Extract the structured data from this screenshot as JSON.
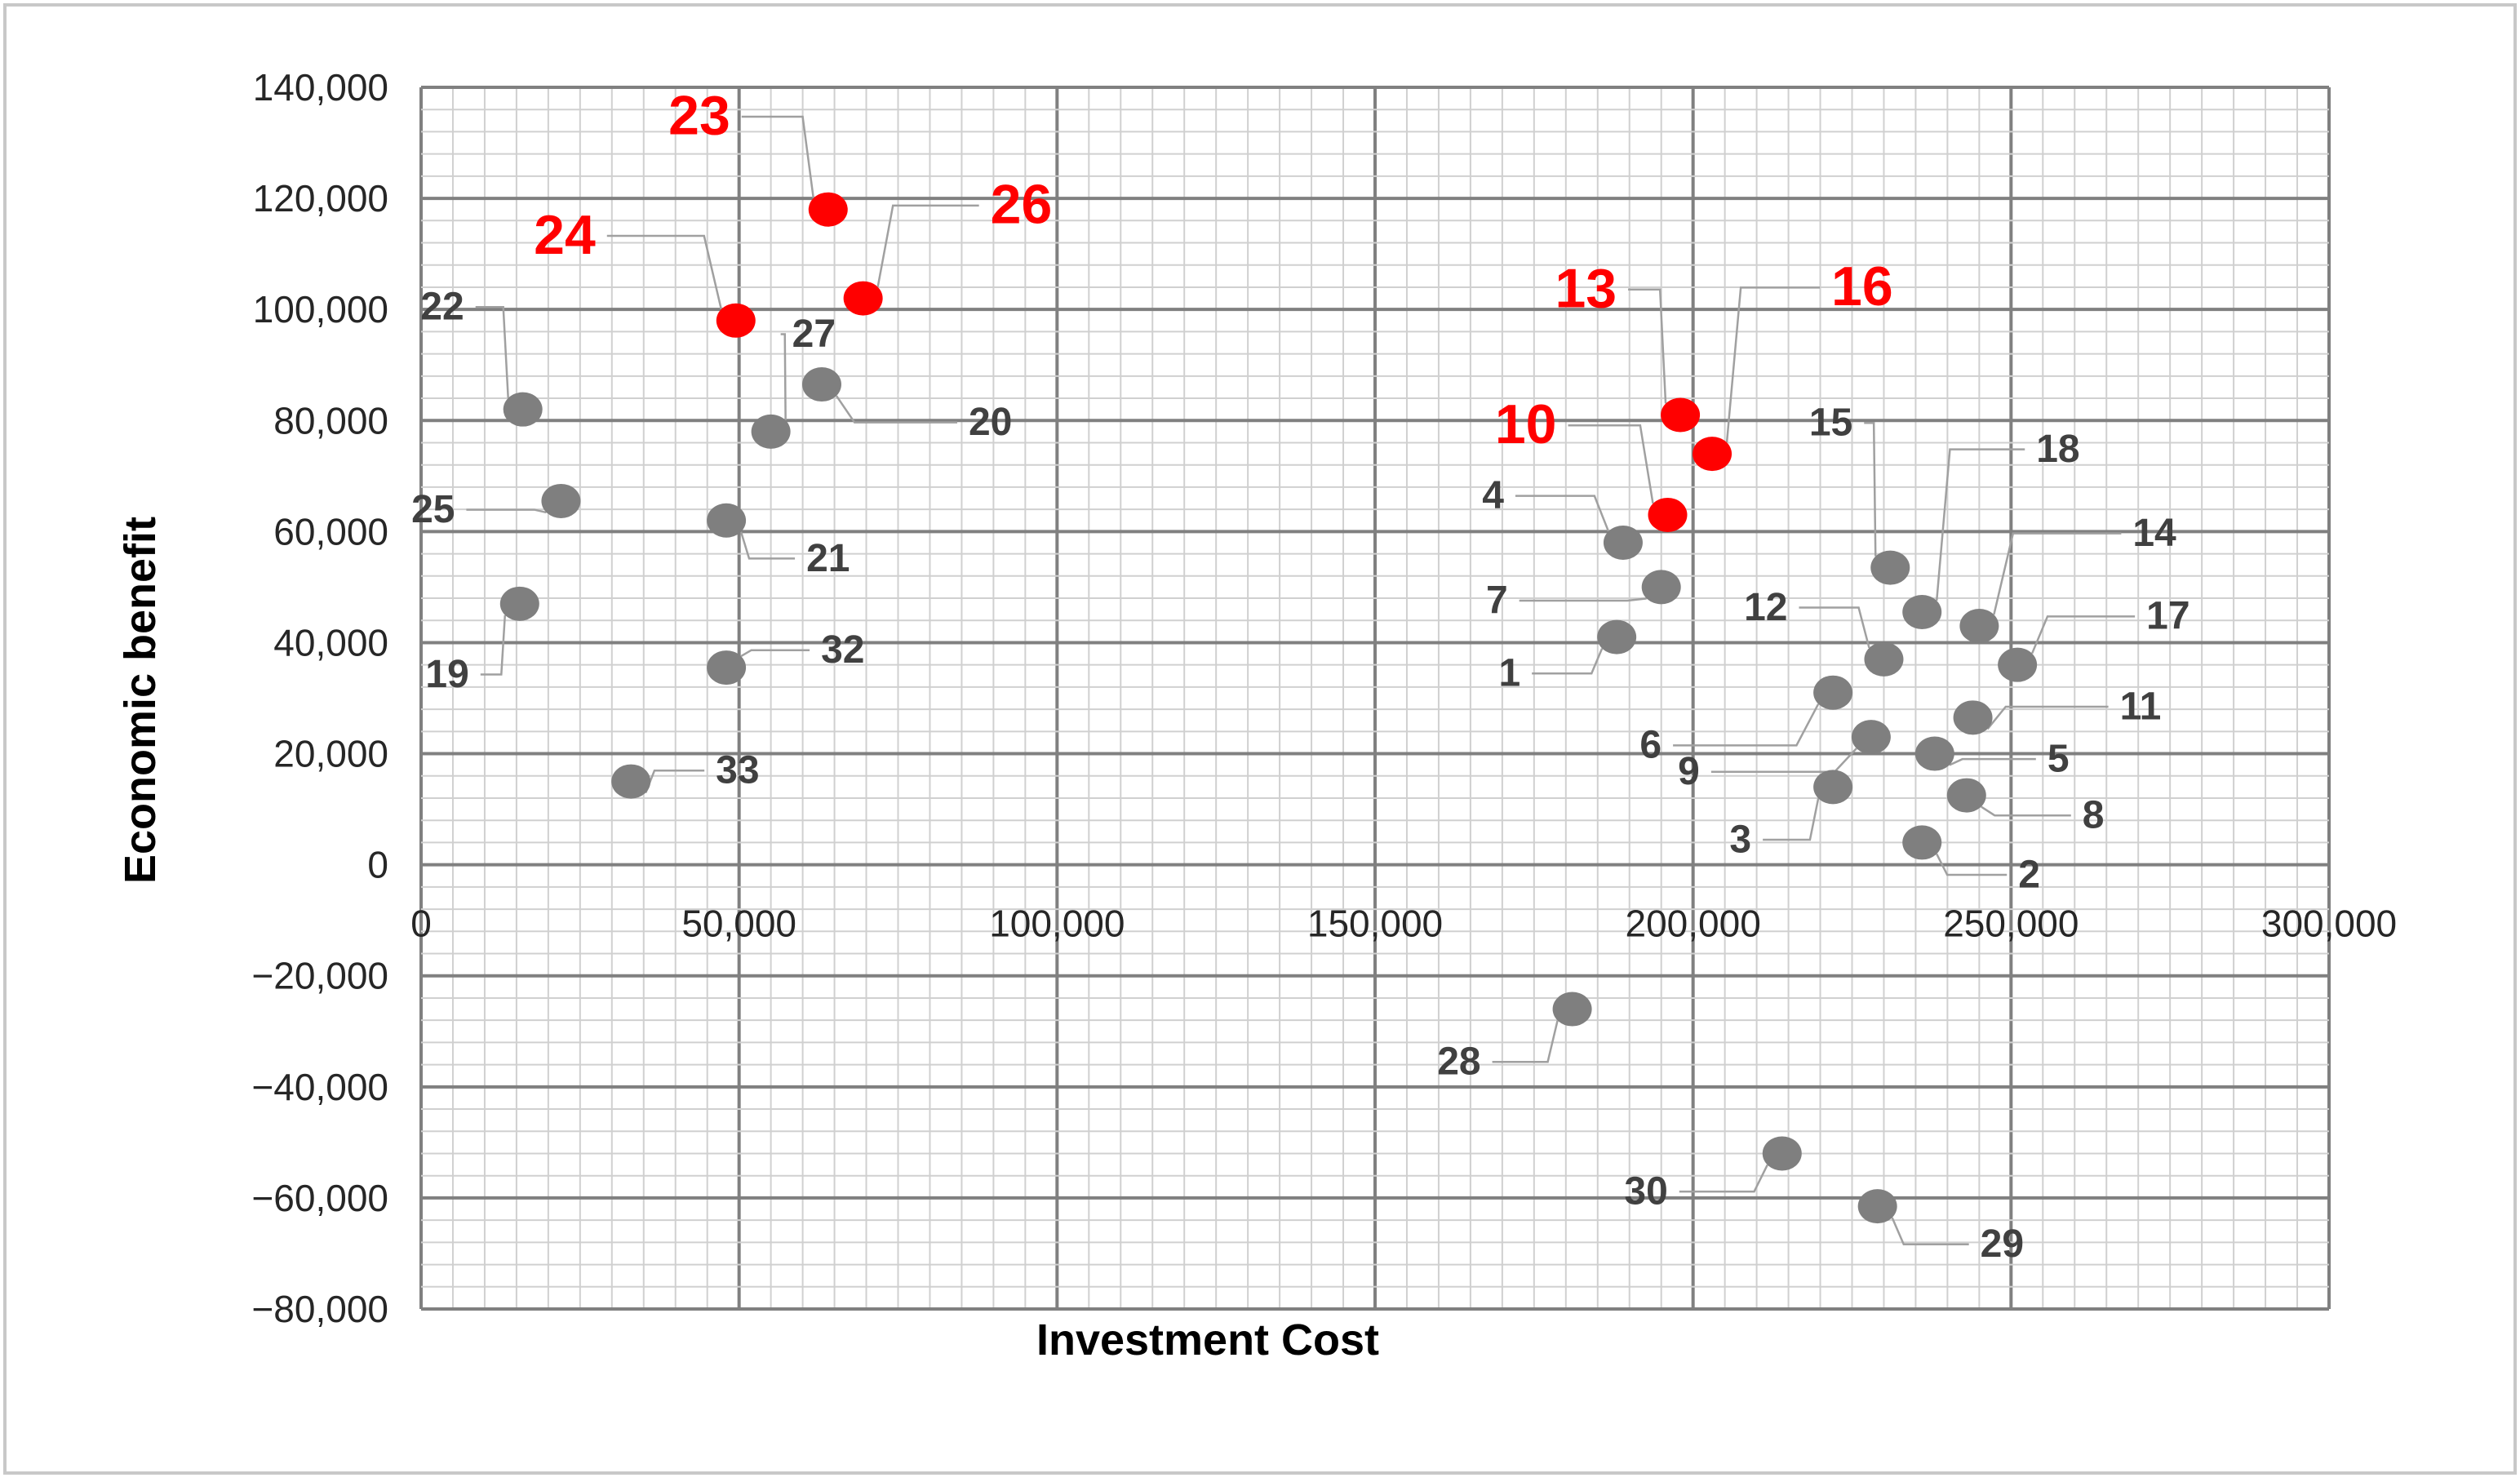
{
  "chart_data": {
    "type": "scatter",
    "title": "",
    "xlabel": "Investment Cost",
    "ylabel": "Economic benefit",
    "xlim": [
      0,
      300000
    ],
    "ylim": [
      -80000,
      140000
    ],
    "x_ticks": [
      0,
      50000,
      100000,
      150000,
      200000,
      250000,
      300000
    ],
    "y_ticks": [
      -80000,
      -60000,
      -40000,
      -20000,
      0,
      20000,
      40000,
      60000,
      80000,
      100000,
      120000,
      140000
    ],
    "x_tick_labels": [
      "0",
      "50,000",
      "100,000",
      "150,000",
      "200,000",
      "250,000",
      "300,000"
    ],
    "y_tick_labels": [
      "−80,000",
      "−60,000",
      "−40,000",
      "−20,000",
      "0",
      "20,000",
      "40,000",
      "60,000",
      "80,000",
      "100,000",
      "120,000",
      "140,000"
    ],
    "grid": true,
    "colors": {
      "normal": "#7f7f7f",
      "highlight": "#ff0000",
      "major_grid": "#808080",
      "minor_grid": "#d0d0d0",
      "border": "#c8c8c8"
    },
    "points": [
      {
        "label": "1",
        "x": 188000,
        "y": 41000,
        "highlight": false
      },
      {
        "label": "2",
        "x": 236000,
        "y": 4000,
        "highlight": false
      },
      {
        "label": "3",
        "x": 222000,
        "y": 14000,
        "highlight": false
      },
      {
        "label": "4",
        "x": 189000,
        "y": 58000,
        "highlight": false
      },
      {
        "label": "5",
        "x": 238000,
        "y": 20000,
        "highlight": false
      },
      {
        "label": "6",
        "x": 222000,
        "y": 31000,
        "highlight": false
      },
      {
        "label": "7",
        "x": 195000,
        "y": 50000,
        "highlight": false
      },
      {
        "label": "8",
        "x": 243000,
        "y": 12500,
        "highlight": false
      },
      {
        "label": "9",
        "x": 228000,
        "y": 23000,
        "highlight": false
      },
      {
        "label": "10",
        "x": 196000,
        "y": 63000,
        "highlight": true
      },
      {
        "label": "11",
        "x": 244000,
        "y": 26500,
        "highlight": false
      },
      {
        "label": "12",
        "x": 230000,
        "y": 37000,
        "highlight": false
      },
      {
        "label": "13",
        "x": 198000,
        "y": 81000,
        "highlight": true
      },
      {
        "label": "14",
        "x": 245000,
        "y": 43000,
        "highlight": false
      },
      {
        "label": "15",
        "x": 231000,
        "y": 53500,
        "highlight": false
      },
      {
        "label": "16",
        "x": 203000,
        "y": 74000,
        "highlight": true
      },
      {
        "label": "17",
        "x": 251000,
        "y": 36000,
        "highlight": false
      },
      {
        "label": "18",
        "x": 236000,
        "y": 45500,
        "highlight": false
      },
      {
        "label": "19",
        "x": 15500,
        "y": 47000,
        "highlight": false
      },
      {
        "label": "20",
        "x": 63000,
        "y": 86500,
        "highlight": false
      },
      {
        "label": "21",
        "x": 48000,
        "y": 62000,
        "highlight": false
      },
      {
        "label": "22",
        "x": 16000,
        "y": 82000,
        "highlight": false
      },
      {
        "label": "23",
        "x": 64000,
        "y": 118000,
        "highlight": true
      },
      {
        "label": "24",
        "x": 49500,
        "y": 98000,
        "highlight": true
      },
      {
        "label": "25",
        "x": 22000,
        "y": 65500,
        "highlight": false
      },
      {
        "label": "26",
        "x": 69500,
        "y": 102000,
        "highlight": true
      },
      {
        "label": "27",
        "x": 55000,
        "y": 78000,
        "highlight": false
      },
      {
        "label": "28",
        "x": 181000,
        "y": -26000,
        "highlight": false
      },
      {
        "label": "29",
        "x": 229000,
        "y": -61500,
        "highlight": false
      },
      {
        "label": "30",
        "x": 214000,
        "y": -52000,
        "highlight": false
      },
      {
        "label": "32",
        "x": 48000,
        "y": 35500,
        "highlight": false
      },
      {
        "label": "33",
        "x": 33000,
        "y": 15000,
        "highlight": false
      }
    ]
  }
}
